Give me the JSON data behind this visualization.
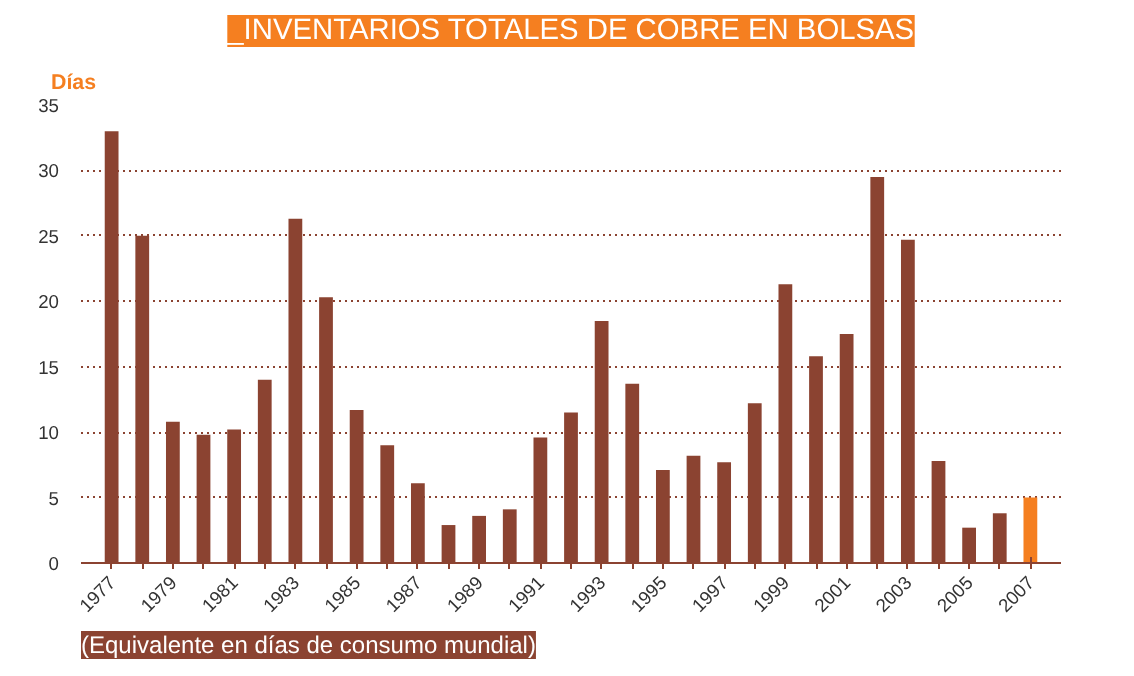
{
  "chart_data": {
    "type": "bar",
    "title": "_INVENTARIOS TOTALES DE COBRE EN BOLSAS",
    "ylabel": "Días",
    "annotations": [
      "(Equivalente en días de consumo mundial)"
    ],
    "categories": [
      "1977",
      null,
      "1979",
      null,
      "1981",
      null,
      "1983",
      null,
      "1985",
      null,
      "1987",
      null,
      "1989",
      null,
      "1991",
      null,
      "1993",
      null,
      "1995",
      null,
      "1997",
      null,
      "1999",
      null,
      "2001",
      null,
      "2003",
      null,
      "2005",
      null,
      "2007"
    ],
    "values": [
      33,
      25,
      10.8,
      9.8,
      10.2,
      14,
      26.3,
      20.3,
      11.7,
      9,
      6.1,
      2.9,
      3.6,
      4.1,
      9.6,
      11.5,
      18.5,
      13.7,
      7.1,
      8.2,
      7.7,
      12.2,
      21.3,
      15.8,
      17.5,
      29.5,
      24.7,
      7.8,
      2.7,
      3.8,
      5
    ],
    "colors": [
      "#8b4331",
      "#8b4331",
      "#8b4331",
      "#8b4331",
      "#8b4331",
      "#8b4331",
      "#8b4331",
      "#8b4331",
      "#8b4331",
      "#8b4331",
      "#8b4331",
      "#8b4331",
      "#8b4331",
      "#8b4331",
      "#8b4331",
      "#8b4331",
      "#8b4331",
      "#8b4331",
      "#8b4331",
      "#8b4331",
      "#8b4331",
      "#8b4331",
      "#8b4331",
      "#8b4331",
      "#8b4331",
      "#8b4331",
      "#8b4331",
      "#8b4331",
      "#8b4331",
      "#8b4331",
      "#f57f20"
    ],
    "ylim": [
      0,
      35
    ],
    "yticks": [
      0,
      5,
      10,
      15,
      20,
      25,
      30,
      35
    ],
    "grid": "y"
  }
}
